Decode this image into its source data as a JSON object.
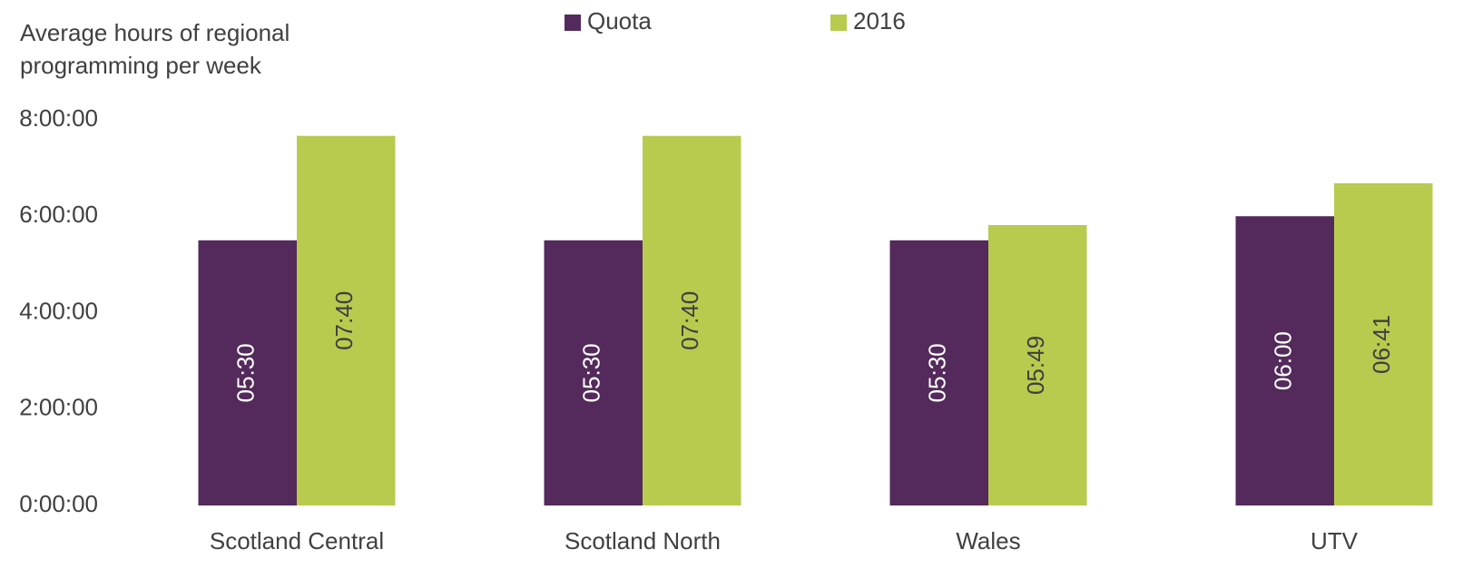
{
  "chart_data": {
    "type": "bar",
    "ylabel": [
      "Average hours of regional",
      "programming per week"
    ],
    "categories": [
      "Scotland Central",
      "Scotland North",
      "Wales",
      "UTV"
    ],
    "series": [
      {
        "name": "Quota",
        "color": "#532a5b",
        "values": [
          5.5,
          5.5,
          5.5,
          6.0
        ],
        "value_labels": [
          "05:30",
          "05:30",
          "05:30",
          "06:00"
        ]
      },
      {
        "name": "2016",
        "color": "#b8cb4f",
        "values": [
          7.6667,
          7.6667,
          5.8167,
          6.6833
        ],
        "value_labels": [
          "07:40",
          "07:40",
          "05:49",
          "06:41"
        ]
      }
    ],
    "ylim": [
      0,
      8
    ],
    "yticks": [
      {
        "value": 0,
        "label": "0:00:00"
      },
      {
        "value": 2,
        "label": "2:00:00"
      },
      {
        "value": 4,
        "label": "4:00:00"
      },
      {
        "value": 6,
        "label": "6:00:00"
      },
      {
        "value": 8,
        "label": "8:00:00"
      }
    ],
    "grid": false,
    "legend": "top"
  }
}
